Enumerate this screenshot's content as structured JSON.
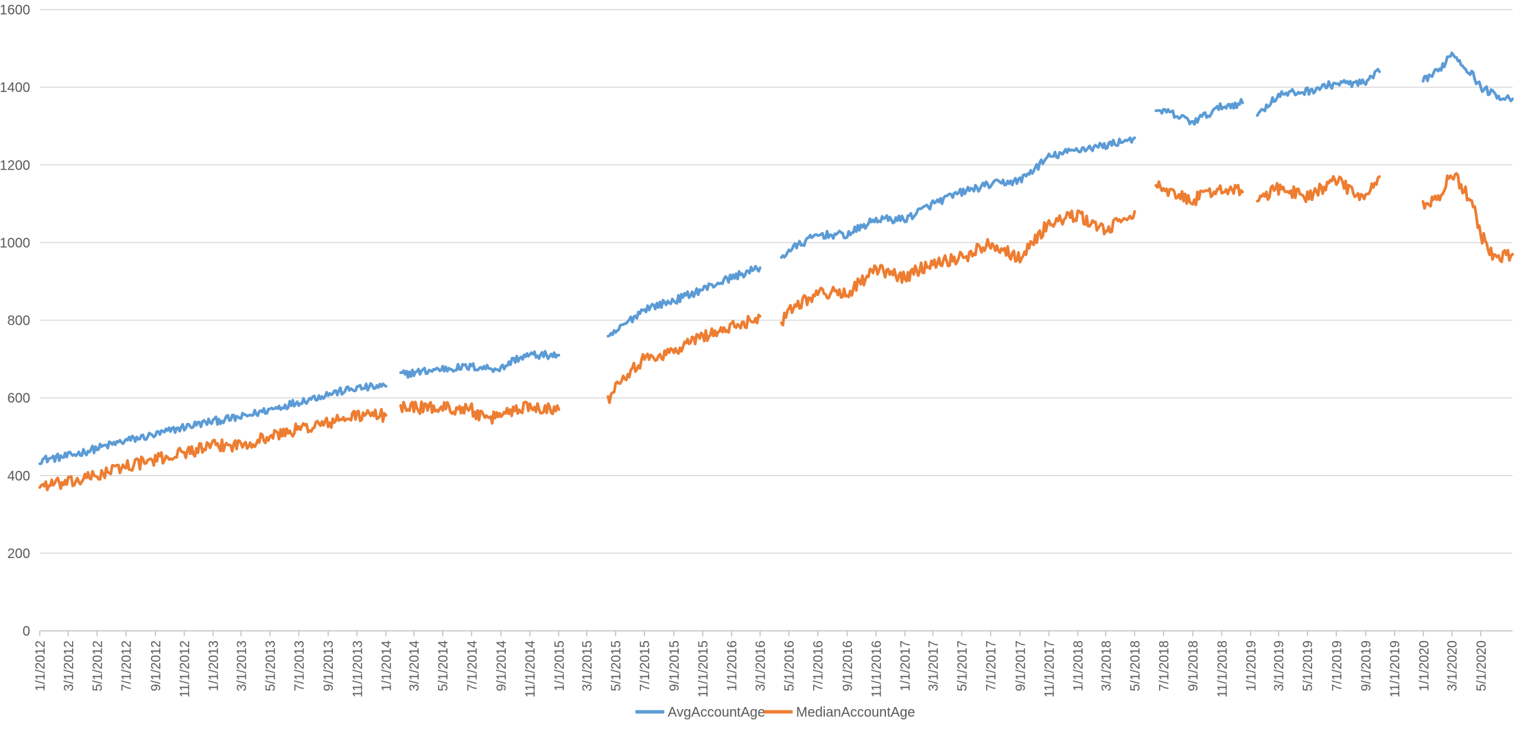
{
  "chart_data": {
    "type": "line",
    "title": "",
    "xlabel": "",
    "ylabel": "",
    "x_axis_type": "date",
    "xlim": [
      "2012-01-01",
      "2020-07-07"
    ],
    "ylim": [
      0,
      1600
    ],
    "y_ticks": [
      0,
      200,
      400,
      600,
      800,
      1000,
      1200,
      1400,
      1600
    ],
    "y_tick_labels": [
      "0",
      "200",
      "400",
      "600",
      "800",
      "1000",
      "1200",
      "1400",
      "1600"
    ],
    "x_ticks": [
      "2012-01-01",
      "2012-03-01",
      "2012-05-01",
      "2012-07-01",
      "2012-09-01",
      "2012-11-01",
      "2013-01-01",
      "2013-03-01",
      "2013-05-01",
      "2013-07-01",
      "2013-09-01",
      "2013-11-01",
      "2014-01-01",
      "2014-03-01",
      "2014-05-01",
      "2014-07-01",
      "2014-09-01",
      "2014-11-01",
      "2015-01-01",
      "2015-03-01",
      "2015-05-01",
      "2015-07-01",
      "2015-09-01",
      "2015-11-01",
      "2016-01-01",
      "2016-03-01",
      "2016-05-01",
      "2016-07-01",
      "2016-09-01",
      "2016-11-01",
      "2017-01-01",
      "2017-03-01",
      "2017-05-01",
      "2017-07-01",
      "2017-09-01",
      "2017-11-01",
      "2018-01-01",
      "2018-03-01",
      "2018-05-01",
      "2018-07-01",
      "2018-09-01",
      "2018-11-01",
      "2019-01-01",
      "2019-03-01",
      "2019-05-01",
      "2019-07-01",
      "2019-09-01",
      "2019-11-01",
      "2020-01-01",
      "2020-03-01",
      "2020-05-01"
    ],
    "x_tick_labels": [
      "1/1/2012",
      "3/1/2012",
      "5/1/2012",
      "7/1/2012",
      "9/1/2012",
      "11/1/2012",
      "1/1/2013",
      "3/1/2013",
      "5/1/2013",
      "7/1/2013",
      "9/1/2013",
      "11/1/2013",
      "1/1/2014",
      "3/1/2014",
      "5/1/2014",
      "7/1/2014",
      "9/1/2014",
      "11/1/2014",
      "1/1/2015",
      "3/1/2015",
      "5/1/2015",
      "7/1/2015",
      "9/1/2015",
      "11/1/2015",
      "1/1/2016",
      "3/1/2016",
      "5/1/2016",
      "7/1/2016",
      "9/1/2016",
      "11/1/2016",
      "1/1/2017",
      "3/1/2017",
      "5/1/2017",
      "7/1/2017",
      "9/1/2017",
      "11/1/2017",
      "1/1/2018",
      "3/1/2018",
      "5/1/2018",
      "7/1/2018",
      "9/1/2018",
      "11/1/2018",
      "1/1/2019",
      "3/1/2019",
      "5/1/2019",
      "7/1/2019",
      "9/1/2019",
      "11/1/2019",
      "1/1/2020",
      "3/1/2020",
      "5/1/2020"
    ],
    "grid": "horizontal",
    "legend_position": "bottom-center",
    "series": [
      {
        "name": "AvgAccountAge",
        "color": "#5B9BD5",
        "segments": [
          [
            [
              "2012-01-01",
              440
            ],
            [
              "2012-03-01",
              450
            ],
            [
              "2012-05-01",
              470
            ],
            [
              "2012-07-01",
              490
            ],
            [
              "2012-09-01",
              505
            ],
            [
              "2012-11-01",
              525
            ],
            [
              "2013-01-01",
              540
            ],
            [
              "2013-03-01",
              550
            ],
            [
              "2013-05-01",
              570
            ],
            [
              "2013-07-01",
              590
            ],
            [
              "2013-09-01",
              610
            ],
            [
              "2013-11-01",
              625
            ],
            [
              "2014-01-01",
              630
            ]
          ],
          [
            [
              "2014-02-01",
              660
            ],
            [
              "2014-03-01",
              665
            ],
            [
              "2014-05-01",
              675
            ],
            [
              "2014-07-01",
              680
            ],
            [
              "2014-09-01",
              675
            ],
            [
              "2014-10-01",
              700
            ],
            [
              "2014-11-01",
              710
            ],
            [
              "2015-01-01",
              710
            ]
          ],
          [
            [
              "2015-04-15",
              750
            ],
            [
              "2015-05-01",
              770
            ],
            [
              "2015-07-01",
              830
            ],
            [
              "2015-09-01",
              850
            ],
            [
              "2015-11-01",
              880
            ],
            [
              "2016-01-01",
              910
            ],
            [
              "2016-03-01",
              935
            ]
          ],
          [
            [
              "2016-04-15",
              960
            ],
            [
              "2016-05-01",
              980
            ],
            [
              "2016-07-01",
              1020
            ],
            [
              "2016-09-01",
              1020
            ],
            [
              "2016-11-01",
              1060
            ],
            [
              "2017-01-01",
              1060
            ],
            [
              "2017-03-01",
              1100
            ],
            [
              "2017-05-01",
              1130
            ],
            [
              "2017-07-01",
              1150
            ],
            [
              "2017-09-01",
              1160
            ],
            [
              "2017-11-01",
              1220
            ],
            [
              "2018-01-01",
              1240
            ],
            [
              "2018-03-01",
              1250
            ],
            [
              "2018-05-01",
              1270
            ]
          ],
          [
            [
              "2018-06-15",
              1330
            ],
            [
              "2018-07-01",
              1340
            ],
            [
              "2018-09-01",
              1310
            ],
            [
              "2018-11-01",
              1350
            ],
            [
              "2018-12-15",
              1360
            ]
          ],
          [
            [
              "2019-01-15",
              1330
            ],
            [
              "2019-03-01",
              1380
            ],
            [
              "2019-05-01",
              1390
            ],
            [
              "2019-07-01",
              1410
            ],
            [
              "2019-09-01",
              1410
            ],
            [
              "2019-09-30",
              1440
            ]
          ],
          [
            [
              "2019-12-31",
              1420
            ],
            [
              "2020-02-01",
              1440
            ],
            [
              "2020-03-01",
              1490
            ],
            [
              "2020-04-15",
              1430
            ],
            [
              "2020-05-01",
              1400
            ],
            [
              "2020-06-01",
              1380
            ],
            [
              "2020-07-07",
              1370
            ]
          ]
        ]
      },
      {
        "name": "MedianAccountAge",
        "color": "#ED7D31",
        "segments": [
          [
            [
              "2012-01-01",
              375
            ],
            [
              "2012-03-01",
              380
            ],
            [
              "2012-05-01",
              400
            ],
            [
              "2012-07-01",
              425
            ],
            [
              "2012-09-01",
              440
            ],
            [
              "2012-11-01",
              460
            ],
            [
              "2013-01-01",
              475
            ],
            [
              "2013-03-01",
              480
            ],
            [
              "2013-05-01",
              500
            ],
            [
              "2013-07-01",
              520
            ],
            [
              "2013-09-01",
              535
            ],
            [
              "2013-11-01",
              555
            ],
            [
              "2014-01-01",
              555
            ]
          ],
          [
            [
              "2014-02-01",
              580
            ],
            [
              "2014-03-01",
              575
            ],
            [
              "2014-05-01",
              575
            ],
            [
              "2014-07-01",
              570
            ],
            [
              "2014-08-01",
              540
            ],
            [
              "2014-09-01",
              560
            ],
            [
              "2014-11-01",
              580
            ],
            [
              "2015-01-01",
              570
            ]
          ],
          [
            [
              "2015-04-15",
              590
            ],
            [
              "2015-05-01",
              640
            ],
            [
              "2015-07-01",
              700
            ],
            [
              "2015-09-01",
              720
            ],
            [
              "2015-11-01",
              760
            ],
            [
              "2016-01-01",
              780
            ],
            [
              "2016-03-01",
              810
            ]
          ],
          [
            [
              "2016-04-15",
              790
            ],
            [
              "2016-05-01",
              830
            ],
            [
              "2016-07-01",
              870
            ],
            [
              "2016-09-01",
              870
            ],
            [
              "2016-11-01",
              930
            ],
            [
              "2017-01-01",
              910
            ],
            [
              "2017-03-01",
              950
            ],
            [
              "2017-05-01",
              960
            ],
            [
              "2017-07-01",
              1000
            ],
            [
              "2017-09-01",
              960
            ],
            [
              "2017-11-01",
              1050
            ],
            [
              "2018-01-01",
              1070
            ],
            [
              "2018-03-01",
              1030
            ],
            [
              "2018-05-01",
              1080
            ]
          ],
          [
            [
              "2018-06-15",
              1150
            ],
            [
              "2018-07-01",
              1130
            ],
            [
              "2018-09-01",
              1110
            ],
            [
              "2018-11-01",
              1140
            ],
            [
              "2018-12-15",
              1130
            ]
          ],
          [
            [
              "2019-01-15",
              1110
            ],
            [
              "2019-03-01",
              1140
            ],
            [
              "2019-05-01",
              1120
            ],
            [
              "2019-07-01",
              1160
            ],
            [
              "2019-09-01",
              1110
            ],
            [
              "2019-09-30",
              1170
            ]
          ],
          [
            [
              "2019-12-31",
              1100
            ],
            [
              "2020-02-01",
              1110
            ],
            [
              "2020-03-01",
              1180
            ],
            [
              "2020-04-15",
              1100
            ],
            [
              "2020-05-01",
              1020
            ],
            [
              "2020-06-01",
              960
            ],
            [
              "2020-07-07",
              970
            ]
          ]
        ]
      }
    ]
  }
}
